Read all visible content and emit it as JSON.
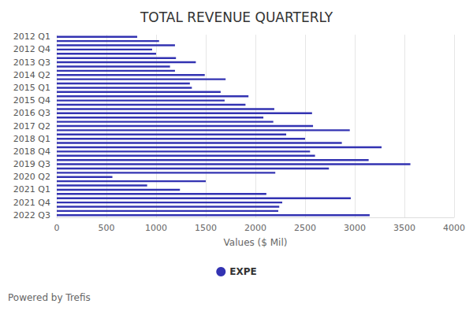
{
  "chart_data": {
    "type": "bar",
    "title": "TOTAL REVENUE QUARTERLY",
    "orientation": "horizontal",
    "x_label": "Values ($ Mil)",
    "annotations": [
      "Powered by Trefis"
    ],
    "categories": [
      "2012 Q1",
      null,
      null,
      "2012 Q4",
      null,
      null,
      "2013 Q3",
      null,
      null,
      "2014 Q2",
      null,
      null,
      "2015 Q1",
      null,
      null,
      "2015 Q4",
      null,
      null,
      "2016 Q3",
      null,
      null,
      "2017 Q2",
      null,
      null,
      "2018 Q1",
      null,
      null,
      "2018 Q4",
      null,
      null,
      "2019 Q3",
      null,
      null,
      "2020 Q2",
      null,
      null,
      "2021 Q1",
      null,
      null,
      "2021 Q4",
      null,
      null,
      "2022 Q3"
    ],
    "series": [
      {
        "name": "EXPE",
        "color": "#3333b2",
        "values": [
          810,
          1030,
          1190,
          960,
          1000,
          1200,
          1400,
          1140,
          1190,
          1490,
          1700,
          1340,
          1360,
          1650,
          1930,
          1690,
          1900,
          2190,
          2570,
          2080,
          2180,
          2580,
          2950,
          2310,
          2500,
          2870,
          3270,
          2550,
          2600,
          3140,
          3560,
          2740,
          2200,
          560,
          1500,
          910,
          1240,
          2110,
          2960,
          2270,
          2240,
          2230,
          3150
        ]
      }
    ],
    "xlim": [
      0,
      4000
    ],
    "xticks": [
      0,
      500,
      1000,
      1500,
      2000,
      2500,
      3000,
      3500,
      4000
    ],
    "grid": true,
    "legend": "bottom"
  }
}
